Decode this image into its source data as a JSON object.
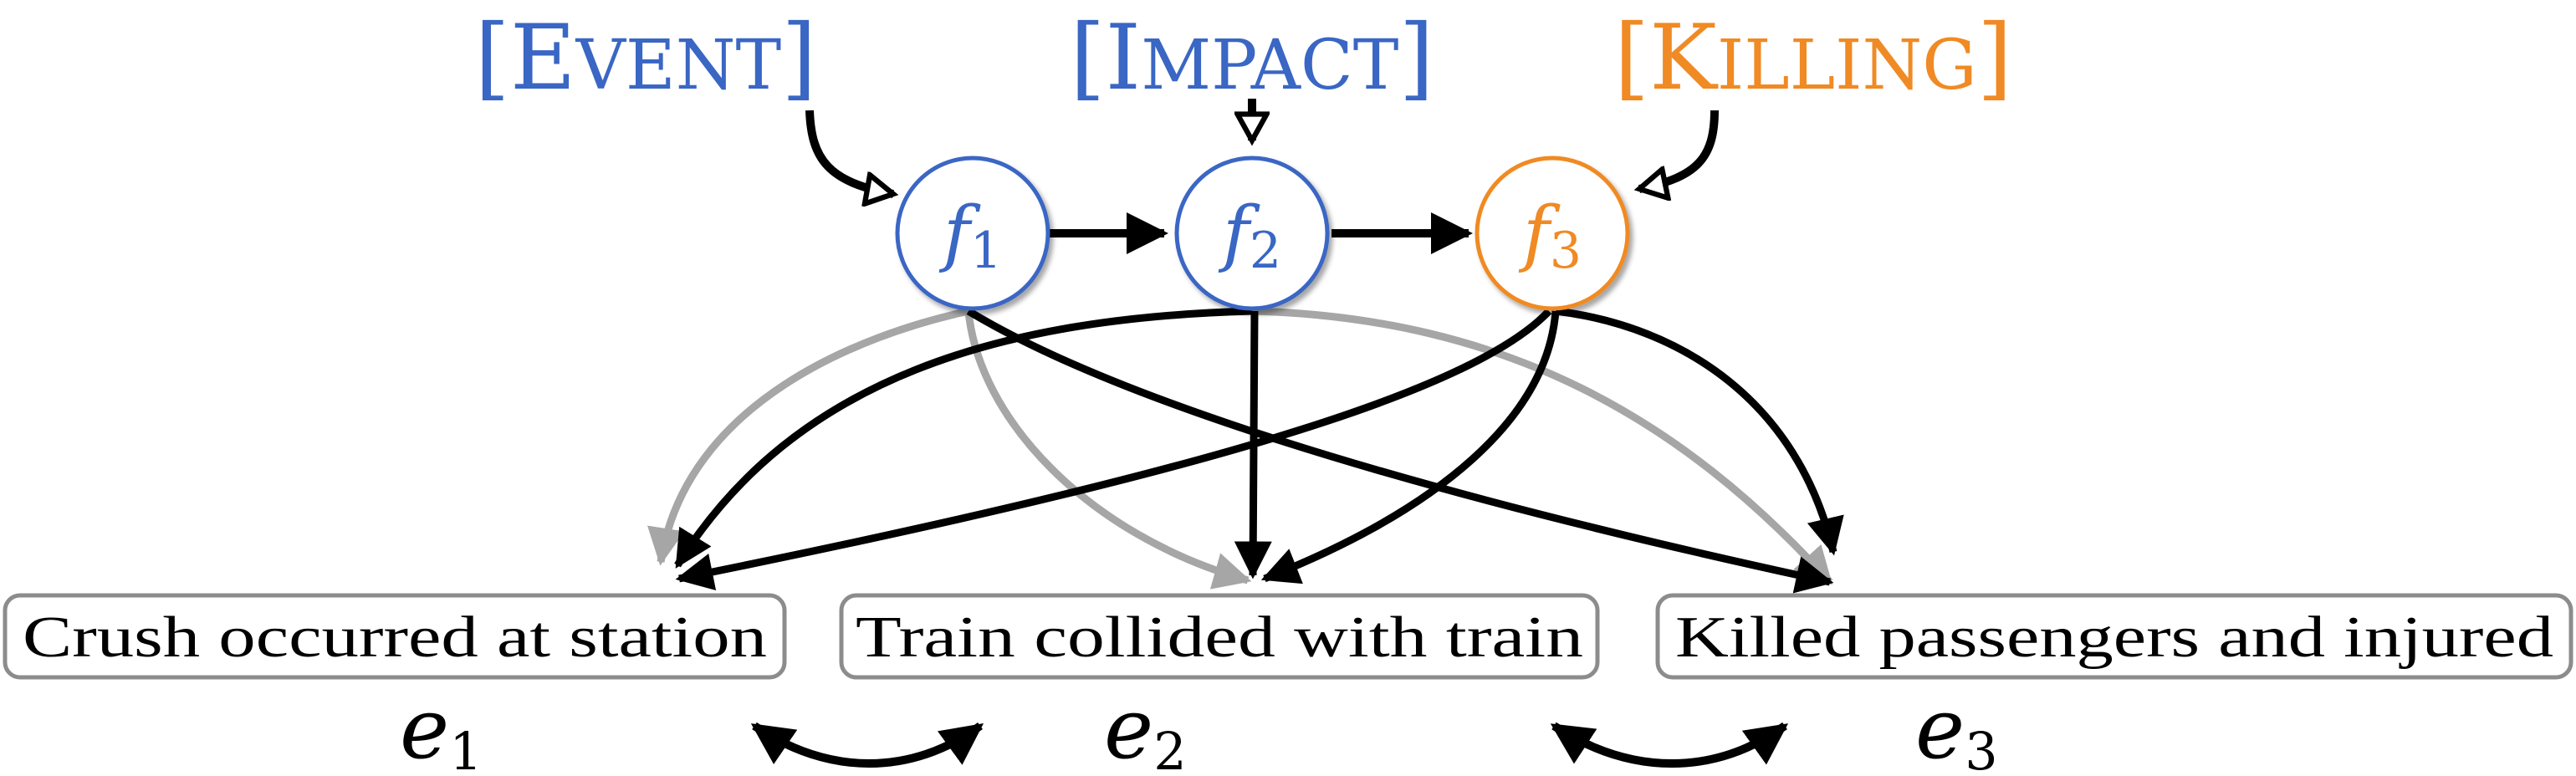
{
  "colors": {
    "blue": "#3a66c4",
    "orange": "#f08a24",
    "black": "#000000",
    "gray": "#a6a6a6",
    "box_border": "#8c8c8c"
  },
  "frames": [
    {
      "open": "[",
      "initial": "E",
      "rest": "VENT",
      "close": "]",
      "color": "blue"
    },
    {
      "open": "[",
      "initial": "I",
      "rest": "MPACT",
      "close": "]",
      "color": "blue"
    },
    {
      "open": "[",
      "initial": "K",
      "rest": "ILLING",
      "close": "]",
      "color": "orange"
    }
  ],
  "nodes": [
    {
      "letter": "f",
      "sub": "1",
      "color": "blue"
    },
    {
      "letter": "f",
      "sub": "2",
      "color": "blue"
    },
    {
      "letter": "f",
      "sub": "3",
      "color": "orange"
    }
  ],
  "events": [
    {
      "text": "Crush occurred at station",
      "var": "e",
      "sub": "1"
    },
    {
      "text": "Train collided with train",
      "var": "e",
      "sub": "2"
    },
    {
      "text": "Killed passengers and injured",
      "var": "e",
      "sub": "3"
    }
  ]
}
